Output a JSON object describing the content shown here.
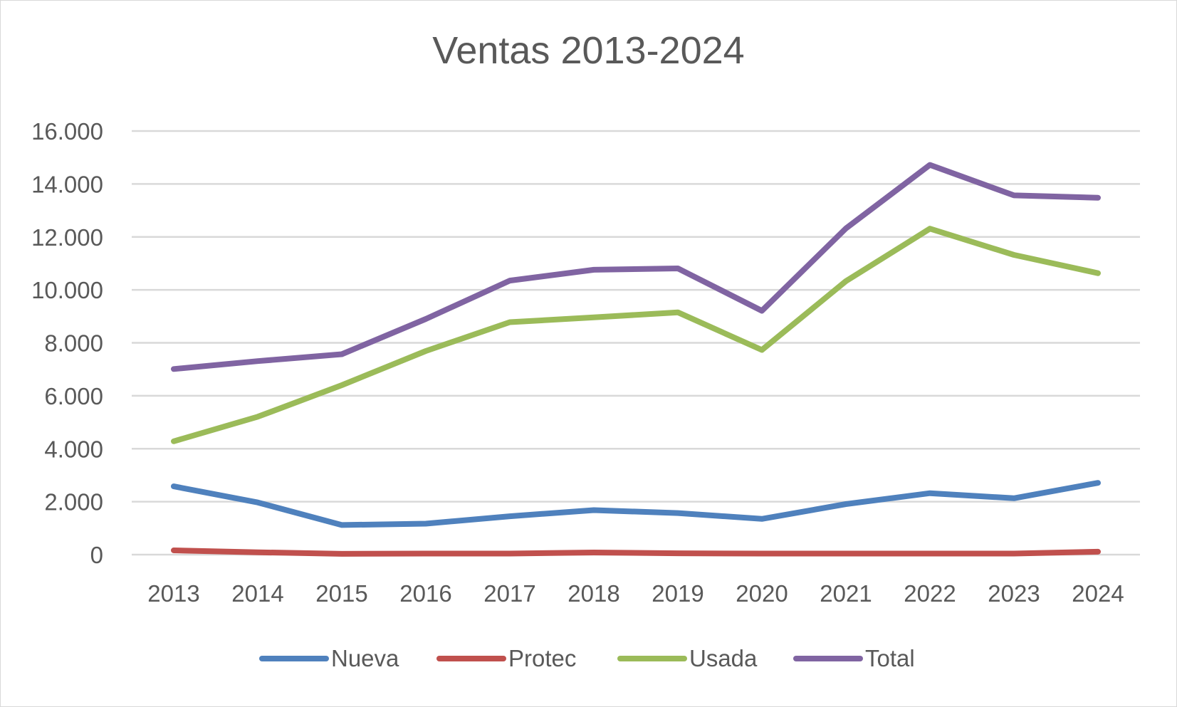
{
  "chart_data": {
    "type": "line",
    "title": "Ventas 2013-2024",
    "categories": [
      "2013",
      "2014",
      "2015",
      "2016",
      "2017",
      "2018",
      "2019",
      "2020",
      "2021",
      "2022",
      "2023",
      "2024"
    ],
    "ylim": [
      0,
      16000
    ],
    "yticks": [
      0,
      2000,
      4000,
      6000,
      8000,
      10000,
      12000,
      14000,
      16000
    ],
    "ytick_labels": [
      "0",
      "2.000",
      "4.000",
      "6.000",
      "8.000",
      "10.000",
      "12.000",
      "14.000",
      "16.000"
    ],
    "grid": true,
    "legend_position": "bottom",
    "series": [
      {
        "name": "Nueva",
        "color": "#4f81bd",
        "values": [
          2580,
          1970,
          1120,
          1170,
          1450,
          1680,
          1570,
          1350,
          1910,
          2320,
          2130,
          2710
        ]
      },
      {
        "name": "Protec",
        "color": "#c0504d",
        "values": [
          160,
          90,
          30,
          40,
          40,
          80,
          50,
          40,
          40,
          40,
          40,
          110
        ]
      },
      {
        "name": "Usada",
        "color": "#9bbb59",
        "values": [
          4280,
          5210,
          6400,
          7690,
          8780,
          8960,
          9150,
          7730,
          10330,
          12310,
          11320,
          10630
        ]
      },
      {
        "name": "Total",
        "color": "#8064a2",
        "values": [
          7010,
          7310,
          7570,
          8900,
          10350,
          10760,
          10810,
          9210,
          12320,
          14720,
          13570,
          13480
        ]
      }
    ]
  }
}
